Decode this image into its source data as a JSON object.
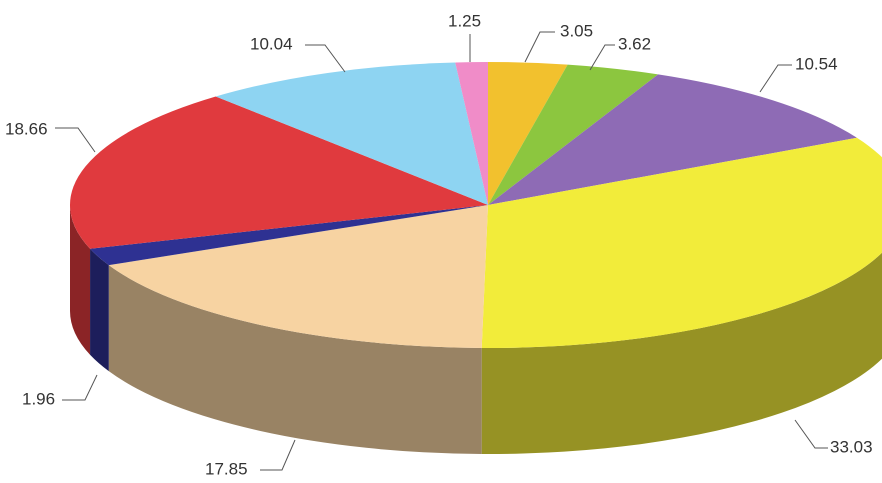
{
  "chart_data": {
    "type": "pie",
    "values": [
      3.05,
      3.62,
      10.54,
      33.03,
      17.85,
      1.96,
      18.66,
      10.04,
      1.25
    ],
    "colors": [
      "#f2c12e",
      "#8cc63f",
      "#8e6bb5",
      "#f2ec3a",
      "#f7d3a2",
      "#2e3192",
      "#e03a3e",
      "#8ed4f2",
      "#f08cc8"
    ]
  }
}
